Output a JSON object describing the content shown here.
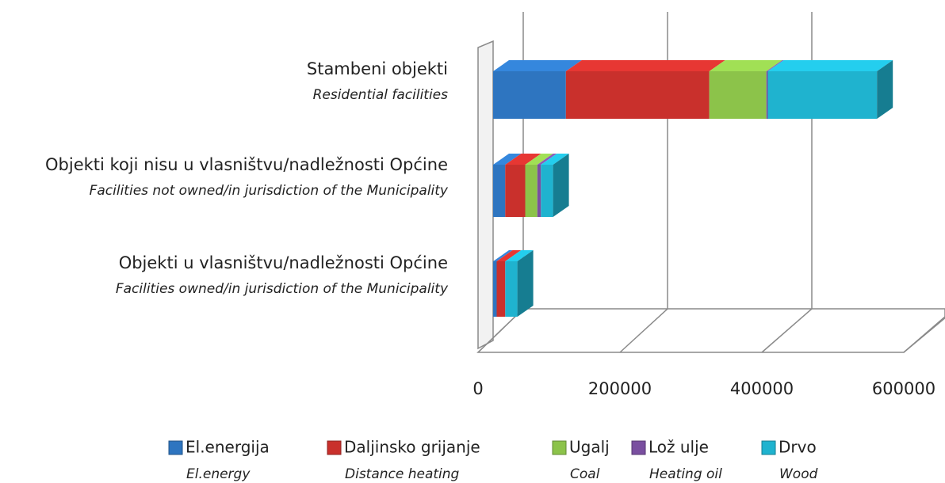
{
  "chart_data": {
    "type": "bar3d-horizontal-stacked",
    "categories": [
      "Stambeni objekti",
      "Objekti koji nisu u vlasništvu/nadležnosti Općine",
      "Objekti u vlasništvu/nadležnosti Općine"
    ],
    "categories_en": [
      "Residential facilities",
      "Facilities not owned/in jurisdiction of the Municipality",
      "Facilities owned/in jurisdiction of the Municipality"
    ],
    "series": [
      {
        "name": "El.energija",
        "name_en": "El.energy",
        "color": "#2e75c0",
        "values": [
          102000,
          17000,
          5000
        ]
      },
      {
        "name": "Daljinsko grijanje",
        "name_en": "Distance heating",
        "color": "#c9302c",
        "values": [
          201000,
          28000,
          12000
        ]
      },
      {
        "name": "Ugalj",
        "name_en": "Coal",
        "color": "#8cc34a",
        "values": [
          80000,
          17000,
          0
        ]
      },
      {
        "name": "Lož ulje",
        "name_en": "Heating oil",
        "color": "#7a4fa0",
        "values": [
          2000,
          5000,
          0
        ]
      },
      {
        "name": "Drvo",
        "name_en": "Wood",
        "color": "#1fb3cf",
        "values": [
          153000,
          17000,
          17000
        ]
      }
    ],
    "xlim": [
      0,
      600000
    ],
    "xticks": [
      0,
      200000,
      400000,
      600000
    ],
    "grid": true,
    "legend": "bottom"
  }
}
